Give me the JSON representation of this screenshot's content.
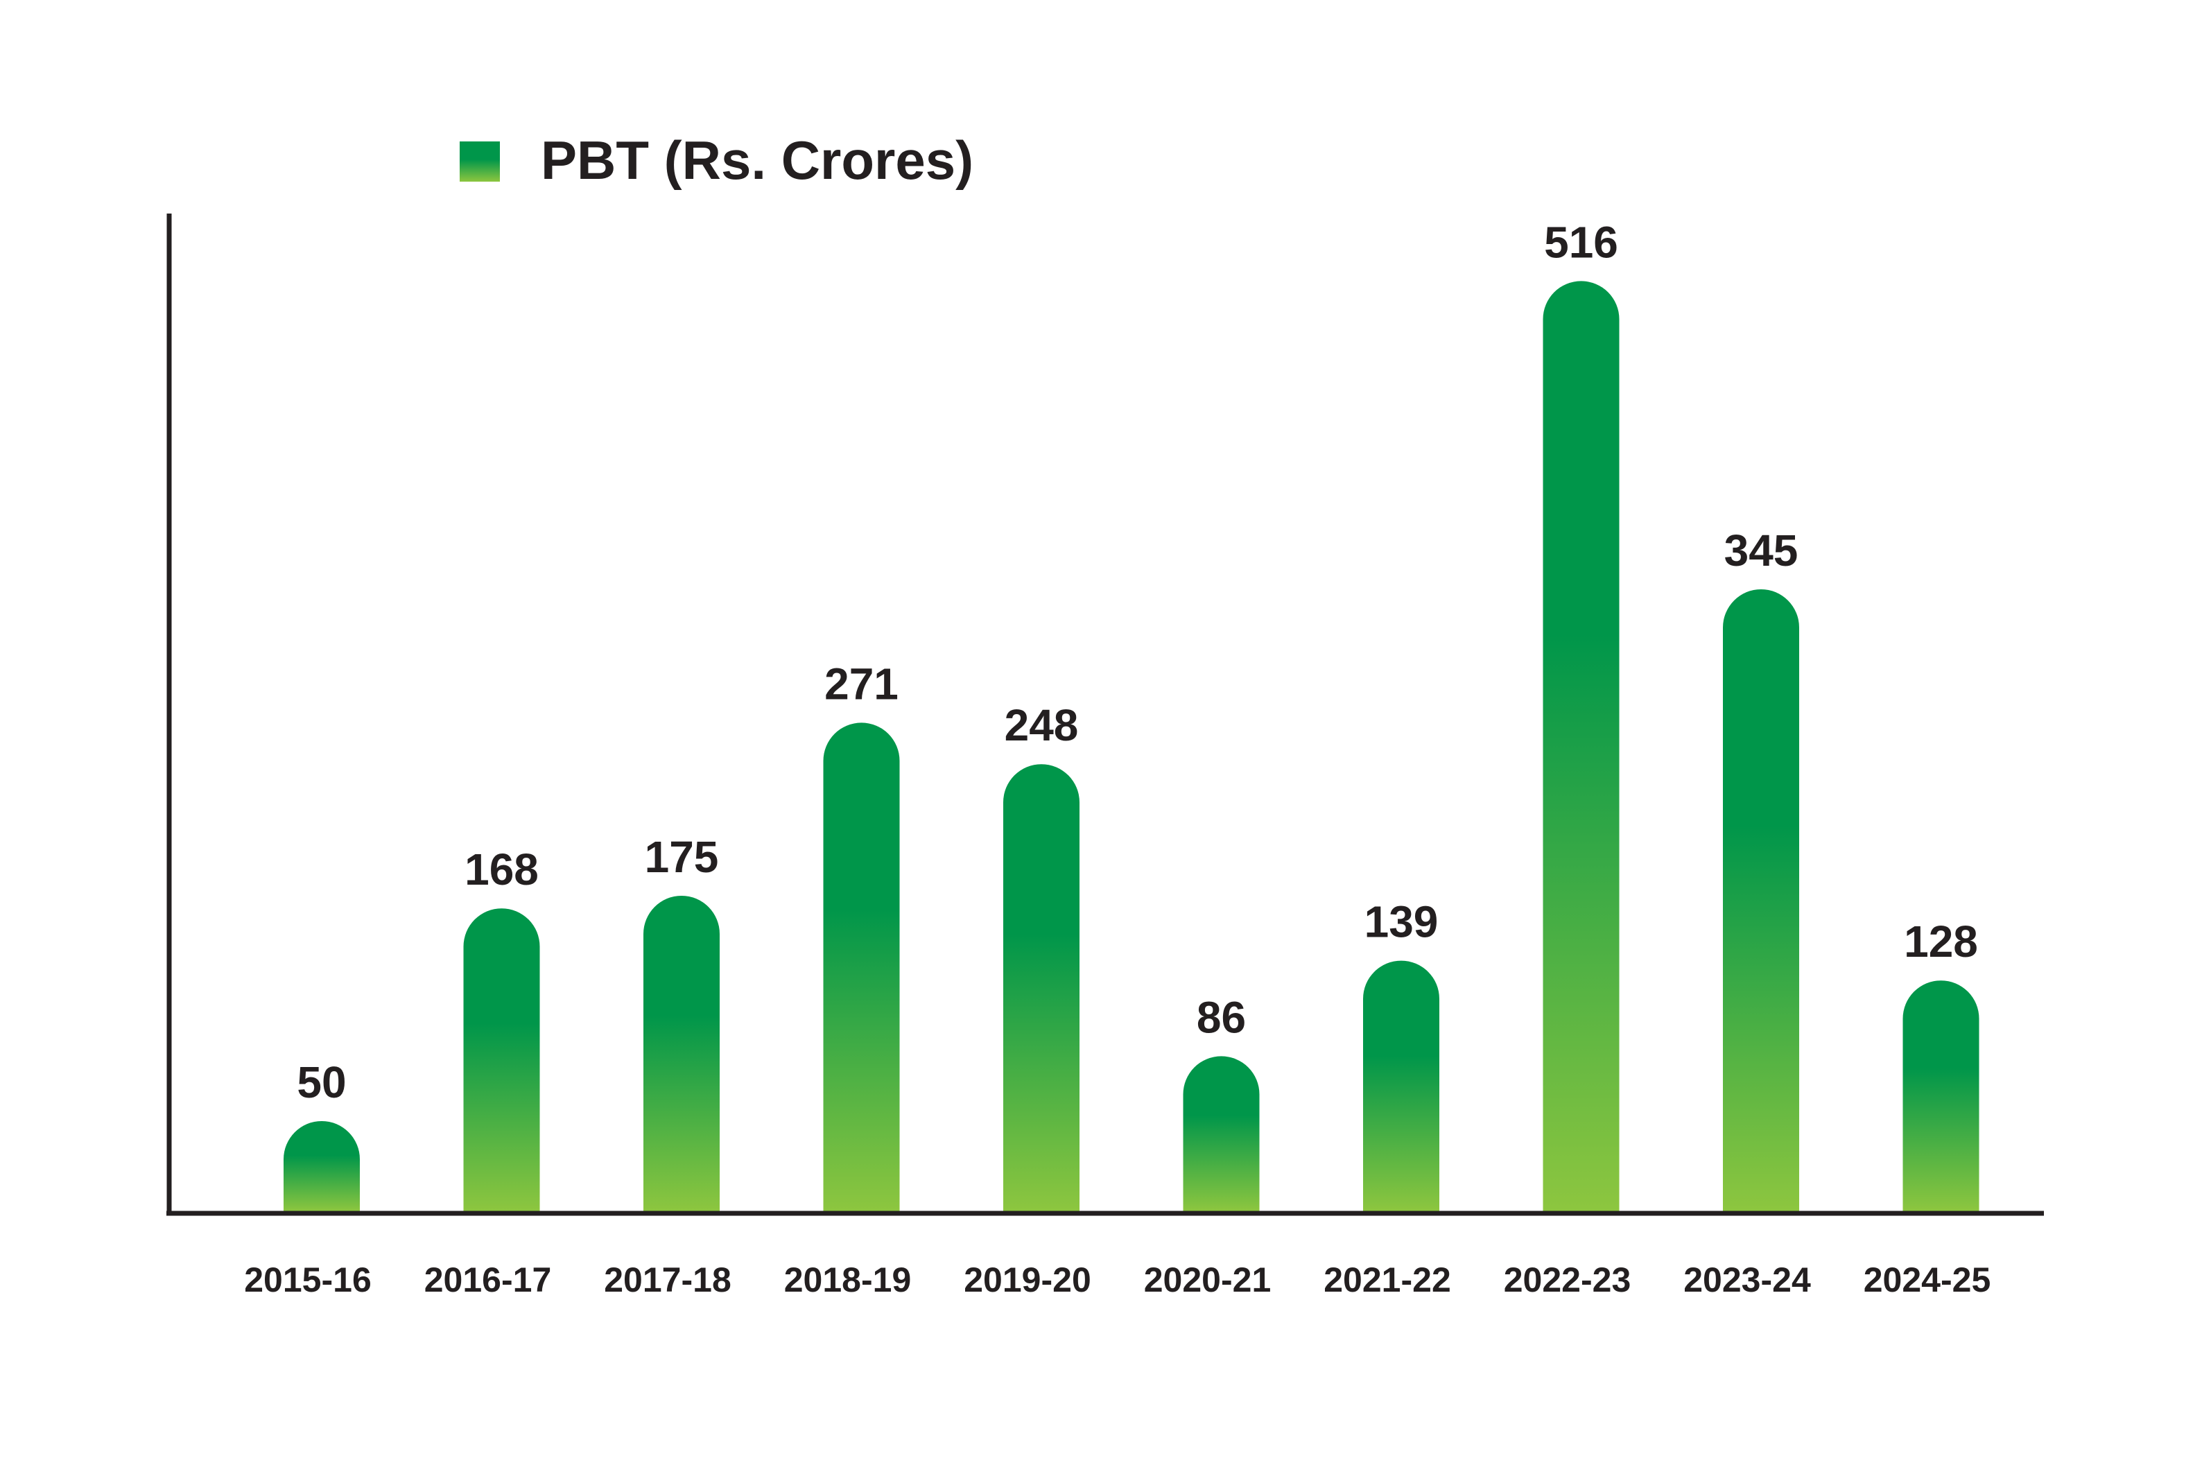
{
  "chart_data": {
    "type": "bar",
    "legend": "top-left",
    "grid": false,
    "series": [
      {
        "name": "PBT (Rs. Crores)",
        "values": [
          50,
          168,
          175,
          271,
          248,
          86,
          139,
          516,
          345,
          128
        ]
      }
    ],
    "categories": [
      "2015-16",
      "2016-17",
      "2017-18",
      "2018-19",
      "2019-20",
      "2020-21",
      "2021-22",
      "2022-23",
      "2023-24",
      "2024-25"
    ],
    "data_labels": [
      "50",
      "168",
      "175",
      "271",
      "248",
      "86",
      "139",
      "516",
      "345",
      "128"
    ],
    "ylim": [
      0,
      540
    ]
  },
  "colors": {
    "bar_top": "#00964a",
    "bar_mid": "#00964a",
    "bar_bottom": "#8dc63f",
    "axis": "#231f20",
    "text": "#231f20"
  }
}
